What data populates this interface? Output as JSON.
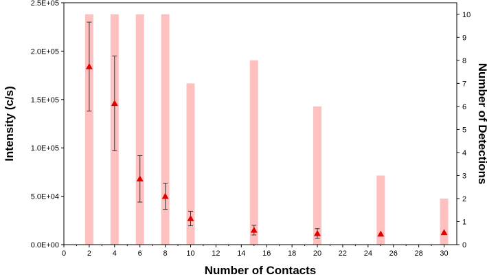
{
  "chart_data": {
    "type": "bar",
    "xlabel": "Number of Contacts",
    "ylabel_left": "Intensity (c/s)",
    "ylabel_right": "Number of Detections",
    "xlim": [
      0,
      31
    ],
    "xticks": [
      0,
      2,
      4,
      6,
      8,
      10,
      12,
      14,
      16,
      18,
      20,
      22,
      24,
      26,
      28,
      30
    ],
    "ylim_left": [
      0,
      250000
    ],
    "yticks_left": [
      "0.0E+00",
      "5.0E+04",
      "1.0E+05",
      "1.5E+05",
      "2.0E+05",
      "2.5E+05"
    ],
    "yticks_left_values": [
      0,
      50000,
      100000,
      150000,
      200000,
      250000
    ],
    "ylim_right": [
      0,
      10.5
    ],
    "yticks_right": [
      0,
      1,
      2,
      3,
      4,
      5,
      6,
      7,
      8,
      9,
      10
    ],
    "grid": false,
    "colors": {
      "bar": "#ffc0c0",
      "marker": "#e00000",
      "errorbar": "#333333"
    },
    "series": [
      {
        "kind": "bar",
        "axis": "right",
        "x": [
          2,
          4,
          6,
          8,
          10,
          15,
          20,
          25,
          30
        ],
        "values": [
          10,
          10,
          10,
          10,
          7,
          8,
          6,
          3,
          2
        ]
      },
      {
        "kind": "scatter",
        "axis": "left",
        "marker": "triangle",
        "x": [
          2,
          4,
          6,
          8,
          10,
          15,
          20,
          25,
          30
        ],
        "values": [
          184000,
          146000,
          68000,
          50000,
          27000,
          15000,
          11500,
          11000,
          12500
        ],
        "error": [
          46000,
          49000,
          24000,
          13500,
          7500,
          5000,
          5000,
          0,
          0
        ]
      }
    ]
  }
}
